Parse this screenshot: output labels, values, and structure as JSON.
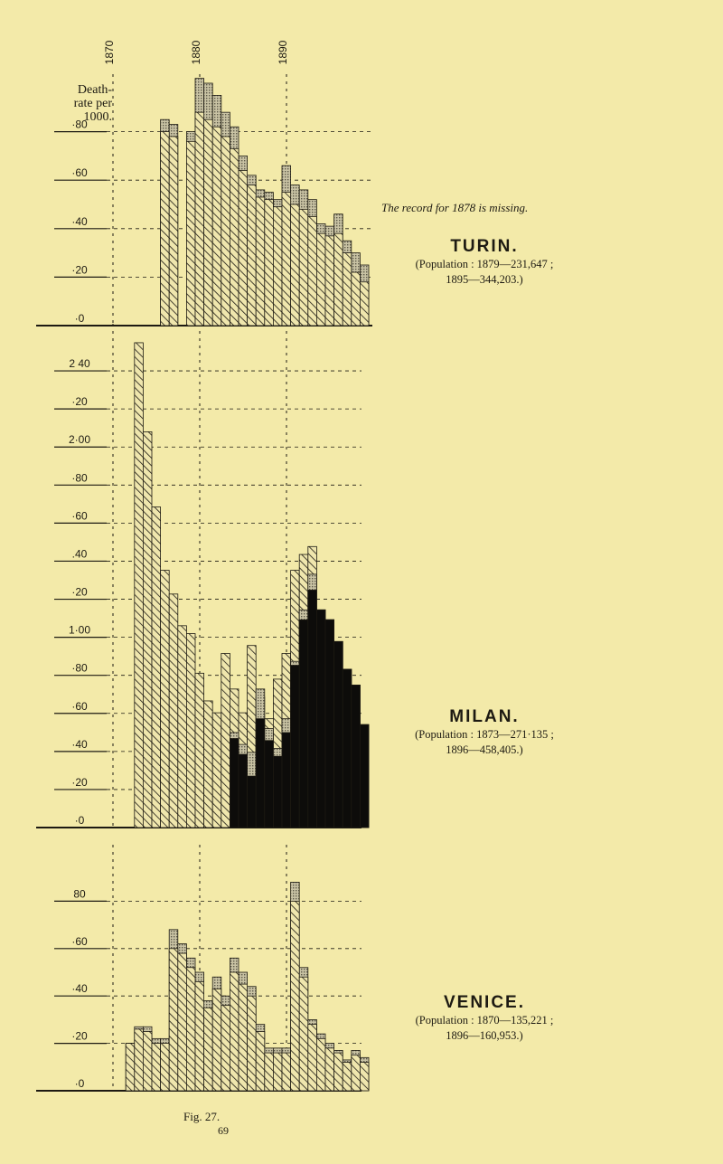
{
  "axis_label": "Death-\nrate per\n1000.",
  "note": "The record for 1878 is missing.",
  "figure_caption": "Fig. 27.",
  "page_number": "69",
  "colors": {
    "background": "#f3eaa9",
    "ink": "#1d1a12",
    "stipple": "#8a8672",
    "black_series": "#0d0c0a"
  },
  "chart_data": [
    {
      "type": "bar",
      "title": "TURIN.",
      "subtitle": "(Population : 1879—231,647 ;\n1895—344,203.)",
      "xlabel": "",
      "ylabel": "Death-rate per 1000.",
      "x_tick_labels": [
        "1870",
        "1880",
        "1890"
      ],
      "ytick_labels": [
        "·0",
        "·20",
        "·40",
        "·60",
        "·80"
      ],
      "ylim": [
        0,
        1.0
      ],
      "grid": true,
      "years": [
        1870,
        1871,
        1872,
        1873,
        1874,
        1875,
        1876,
        1877,
        1878,
        1879,
        1880,
        1881,
        1882,
        1883,
        1884,
        1885,
        1886,
        1887,
        1888,
        1889,
        1890,
        1891,
        1892,
        1893,
        1894,
        1895,
        1896,
        1897,
        1898,
        1899
      ],
      "series": [
        {
          "values": [
            null,
            null,
            null,
            null,
            null,
            null,
            0.85,
            0.83,
            null,
            0.8,
            1.02,
            1.0,
            0.95,
            0.88,
            0.82,
            0.7,
            0.62,
            0.56,
            0.55,
            0.52,
            0.66,
            0.58,
            0.56,
            0.52,
            0.42,
            0.41,
            0.46,
            0.35,
            0.3,
            0.25
          ]
        },
        {
          "values": [
            null,
            null,
            null,
            null,
            null,
            null,
            0.8,
            0.78,
            null,
            0.76,
            0.88,
            0.85,
            0.82,
            0.78,
            0.73,
            0.64,
            0.58,
            0.53,
            0.52,
            0.49,
            0.55,
            0.5,
            0.48,
            0.45,
            0.38,
            0.37,
            0.38,
            0.3,
            0.22,
            0.18
          ]
        }
      ]
    },
    {
      "type": "bar",
      "title": "MILAN.",
      "subtitle": "(Population : 1873—271·135 ;\n1896—458,405.)",
      "xlabel": "",
      "ylabel": "Death-rate per 1000.",
      "ytick_labels": [
        "·0",
        "·20",
        "·40",
        "·60",
        "·80",
        "1·00",
        "·20",
        ".40",
        "·60",
        "·80",
        "2·00",
        "·20",
        "2 40"
      ],
      "ylim": [
        0,
        2.5
      ],
      "grid": true,
      "years": [
        1870,
        1871,
        1872,
        1873,
        1874,
        1875,
        1876,
        1877,
        1878,
        1879,
        1880,
        1881,
        1882,
        1883,
        1884,
        1885,
        1886,
        1887,
        1888,
        1889,
        1890,
        1891,
        1892,
        1893,
        1894,
        1895,
        1896,
        1897,
        1898,
        1899
      ],
      "series": [
        {
          "values": [
            null,
            null,
            null,
            2.45,
            2.0,
            1.62,
            1.3,
            1.18,
            1.02,
            0.98,
            0.78,
            0.64,
            0.58,
            0.88,
            0.7,
            0.58,
            0.92,
            0.66,
            0.55,
            0.75,
            0.88,
            1.3,
            1.38,
            1.42,
            1.1,
            1.05,
            0.94,
            0.8,
            0.72,
            0.52
          ]
        },
        {
          "values": [
            null,
            null,
            null,
            null,
            null,
            null,
            null,
            null,
            null,
            null,
            null,
            null,
            null,
            null,
            0.48,
            0.42,
            0.38,
            0.7,
            0.5,
            0.4,
            0.55,
            0.84,
            1.1,
            1.28,
            1.1,
            1.05,
            0.94,
            0.8,
            0.72,
            0.52
          ]
        },
        {
          "values": [
            null,
            null,
            null,
            null,
            null,
            null,
            null,
            null,
            null,
            null,
            null,
            null,
            null,
            null,
            0.45,
            0.37,
            0.26,
            0.55,
            0.44,
            0.36,
            0.48,
            0.82,
            1.05,
            1.2,
            1.1,
            1.05,
            0.94,
            0.8,
            0.72,
            0.52
          ]
        }
      ]
    },
    {
      "type": "bar",
      "title": "VENICE.",
      "subtitle": "(Population : 1870—135,221 ;\n1896—160,953.)",
      "xlabel": "",
      "ylabel": "Death-rate per 1000.",
      "ytick_labels": [
        "·0",
        "·20",
        "·40",
        "·60",
        "80"
      ],
      "ylim": [
        0,
        1.0
      ],
      "grid": true,
      "years": [
        1870,
        1871,
        1872,
        1873,
        1874,
        1875,
        1876,
        1877,
        1878,
        1879,
        1880,
        1881,
        1882,
        1883,
        1884,
        1885,
        1886,
        1887,
        1888,
        1889,
        1890,
        1891,
        1892,
        1893,
        1894,
        1895,
        1896,
        1897,
        1898,
        1899
      ],
      "series": [
        {
          "values": [
            null,
            null,
            0.2,
            0.27,
            0.27,
            0.22,
            0.22,
            0.68,
            0.62,
            0.56,
            0.5,
            0.38,
            0.48,
            0.4,
            0.56,
            0.5,
            0.44,
            0.28,
            0.18,
            0.18,
            0.18,
            0.88,
            0.52,
            0.3,
            0.24,
            0.2,
            0.17,
            0.13,
            0.17,
            0.14
          ]
        },
        {
          "values": [
            null,
            null,
            0.2,
            0.26,
            0.25,
            0.2,
            0.2,
            0.6,
            0.58,
            0.52,
            0.46,
            0.35,
            0.43,
            0.36,
            0.5,
            0.45,
            0.4,
            0.25,
            0.16,
            0.16,
            0.16,
            0.8,
            0.48,
            0.28,
            0.22,
            0.18,
            0.16,
            0.12,
            0.15,
            0.12
          ]
        }
      ]
    }
  ]
}
